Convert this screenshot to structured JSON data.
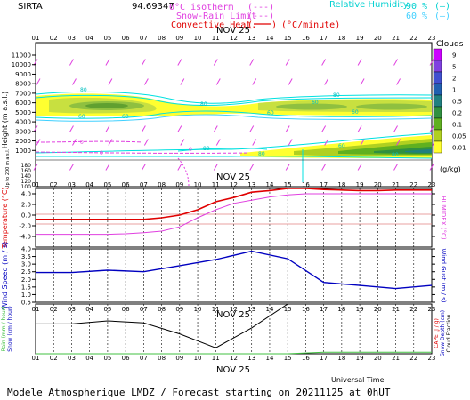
{
  "header": {
    "station": "SIRTA",
    "coords": "94.69347",
    "legend_isotherm": "0°C isotherm",
    "legend_snowrain": "Snow-Rain Limit",
    "legend_convective": "Convective Heat.",
    "legend_convective_unit": "(°C/minute)",
    "legend_rh": "Relative Humidity",
    "rh_90": "90 %",
    "rh_60": "60 %"
  },
  "hours": [
    "01",
    "02",
    "03",
    "04",
    "05",
    "06",
    "07",
    "08",
    "09",
    "10",
    "11",
    "12",
    "13",
    "14",
    "15",
    "16",
    "17",
    "18",
    "19",
    "20",
    "21",
    "22",
    "23"
  ],
  "date_label": "NOV 25",
  "footer": "Modele Atmospherique LMDZ / Forecast starting on 20211125 at 0hUT",
  "clouds_legend": {
    "title": "Clouds",
    "levels": [
      "9",
      "5",
      "2",
      "1",
      "0.5",
      "0.2",
      "0.1",
      "0.05",
      "0.01"
    ],
    "colors": [
      "#cc00ff",
      "#8040e0",
      "#4050d0",
      "#2060b0",
      "#208080",
      "#309040",
      "#60b020",
      "#b0d020",
      "#ffff30"
    ],
    "unit": "(g/kg)"
  },
  "chart_data": [
    {
      "type": "contour",
      "title": "",
      "ylabel": "Height (m a.s.l.)",
      "ylabel_lower": "Up to 200 m a.s.l.",
      "upper_yticks": [
        1000,
        2000,
        3000,
        4000,
        5000,
        6000,
        7000,
        8000,
        9000,
        10000,
        11000
      ],
      "lower_yticks": [
        100,
        120,
        140,
        160,
        180
      ],
      "contour_labels": [
        "80",
        "60",
        "60",
        "80",
        "80",
        "60",
        "60",
        "60",
        "80",
        "80",
        "60",
        "80"
      ],
      "isotherm_labels": [
        "0",
        "0",
        "0"
      ],
      "series": [
        {
          "name": "Relative Humidity 90 %",
          "color": "#00e0e0"
        },
        {
          "name": "Relative Humidity 60 %",
          "color": "#40d0ff"
        },
        {
          "name": "0°C isotherm",
          "color": "#e040e0"
        },
        {
          "name": "Snow-Rain Limit",
          "color": "#e040e0"
        },
        {
          "name": "Convective Heat.",
          "color": "#e00000"
        }
      ]
    },
    {
      "type": "line",
      "ylabel_left": "Temperature (°C)",
      "ylabel_right": "HUMIDEX (°C)",
      "yticks": [
        "4.0",
        "2.0",
        "0.0",
        "-2.0",
        "-4.0"
      ],
      "ylim": [
        -6,
        5
      ],
      "x": [
        1,
        2,
        3,
        4,
        5,
        6,
        7,
        8,
        9,
        10,
        11,
        12,
        13,
        14,
        15,
        16,
        17,
        18,
        19,
        20,
        21,
        22,
        23
      ],
      "series": [
        {
          "name": "Temperature",
          "color": "#e00000",
          "values": [
            -0.8,
            -0.8,
            -0.8,
            -0.8,
            -0.8,
            -0.8,
            -0.8,
            -0.5,
            0,
            1,
            2.5,
            3.3,
            4.3,
            4.6,
            5.0,
            5.0,
            4.8,
            4.7,
            4.6,
            4.6,
            4.7,
            4.7,
            4.7
          ]
        },
        {
          "name": "HUMIDEX",
          "color": "#e040e0",
          "values": [
            -3.6,
            -3.6,
            -3.6,
            -3.6,
            -3.6,
            -3.5,
            -3.3,
            -3.0,
            -2.2,
            -0.5,
            1.0,
            2.2,
            2.8,
            3.4,
            3.8,
            4.0,
            4.0,
            4.0,
            4.0,
            4.0,
            4.0,
            4.0,
            4.0
          ]
        }
      ]
    },
    {
      "type": "line",
      "ylabel_left": "Wind Speed (m / s)",
      "ylabel_right": "Wind Gust (m / s)",
      "yticks": [
        "4.0",
        "3.5",
        "3.0",
        "2.5",
        "2.0",
        "1.5",
        "1.0",
        "0.5"
      ],
      "ylim": [
        0.5,
        4.0
      ],
      "x": [
        1,
        3,
        5,
        7,
        9,
        11,
        13,
        15,
        17,
        19,
        21,
        23
      ],
      "series": [
        {
          "name": "Wind Speed",
          "color": "#0000c0",
          "values": [
            2.45,
            2.45,
            2.6,
            2.5,
            2.9,
            3.3,
            3.85,
            3.35,
            1.8,
            1.6,
            1.4,
            1.6
          ]
        }
      ]
    },
    {
      "type": "line",
      "ylabel_left": "Rain (mm / hour)",
      "ylabel_left2": "Snow (cm / hour)",
      "ylabel_right": "CAPE (J / g)",
      "ylabel_right2": "Snow Depth (cm)",
      "ylabel_right3": "Cloud Fraction",
      "xlabel": "Universal Time",
      "x": [
        1,
        3,
        5,
        7,
        9,
        11,
        13,
        15,
        17,
        19,
        21,
        23
      ],
      "series": [
        {
          "name": "Cloud Fraction",
          "color": "#000000",
          "values": [
            0.6,
            0.6,
            0.66,
            0.62,
            0.4,
            0.12,
            0.52,
            1.0,
            1.0,
            1.0,
            1.0,
            1.0
          ]
        },
        {
          "name": "Rain",
          "color": "#40c040",
          "values": [
            0,
            0,
            0,
            0,
            0,
            0,
            0,
            0,
            0.03,
            0.03,
            0.03,
            0.03
          ]
        }
      ]
    }
  ]
}
